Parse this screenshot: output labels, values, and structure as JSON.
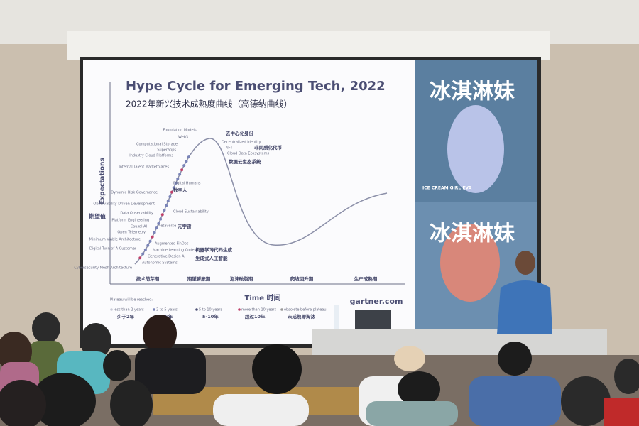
{
  "slide": {
    "title": "Hype Cycle for Emerging Tech, 2022",
    "subtitle": "2022年新兴技术成熟度曲线（高德纳曲线）",
    "y_label_en": "Expectations",
    "y_label_zh": "期望值",
    "x_label": "Time 时间",
    "source": "gartner.com",
    "phases": [
      "技术萌芽期",
      "期望膨胀期",
      "泡沫破裂期",
      "爬坡回升期",
      "生产成熟期"
    ],
    "technologies": [
      "Foundation Models",
      "Web3",
      "Computational Storage",
      "Superapps",
      "Industry Cloud Platforms",
      "Internal Talent Marketplaces",
      "Digital Humans",
      "Dynamic Risk Governance",
      "Observability-Driven Development",
      "Cloud Sustainability",
      "Data Observability",
      "Platform Engineering",
      "Causal AI",
      "Open Telemetry",
      "Minimum Viable Architecture",
      "Digital Twin of A Customer",
      "Cybersecurity Mesh Architecture",
      "Metaverse",
      "Augmented FinOps",
      "Machine Learning Code Generation",
      "Generative Design AI",
      "Autonomic Systems",
      "Decentralized Identity",
      "NFT",
      "Cloud Data Ecosystems"
    ],
    "annotations_zh": [
      "去中心化身份",
      "非同质化代币",
      "数据云生态系统",
      "数字人",
      "元宇宙",
      "机器学习代码生成",
      "生成式人工智能"
    ],
    "legend": {
      "title": "Plateau will be reached:",
      "items": [
        {
          "en": "less than 2 years",
          "zh": "少于2年"
        },
        {
          "en": "2 to 5 years",
          "zh": "2-5年"
        },
        {
          "en": "5 to 10 years",
          "zh": "5-10年"
        },
        {
          "en": "more than 10 years",
          "zh": "超过10年"
        },
        {
          "en": "obsolete before plateau",
          "zh": "未成熟即淘汰"
        }
      ]
    }
  },
  "poster": {
    "title": "冰淇淋妹",
    "subtitle": "ICE CREAM GIRL EVA"
  }
}
